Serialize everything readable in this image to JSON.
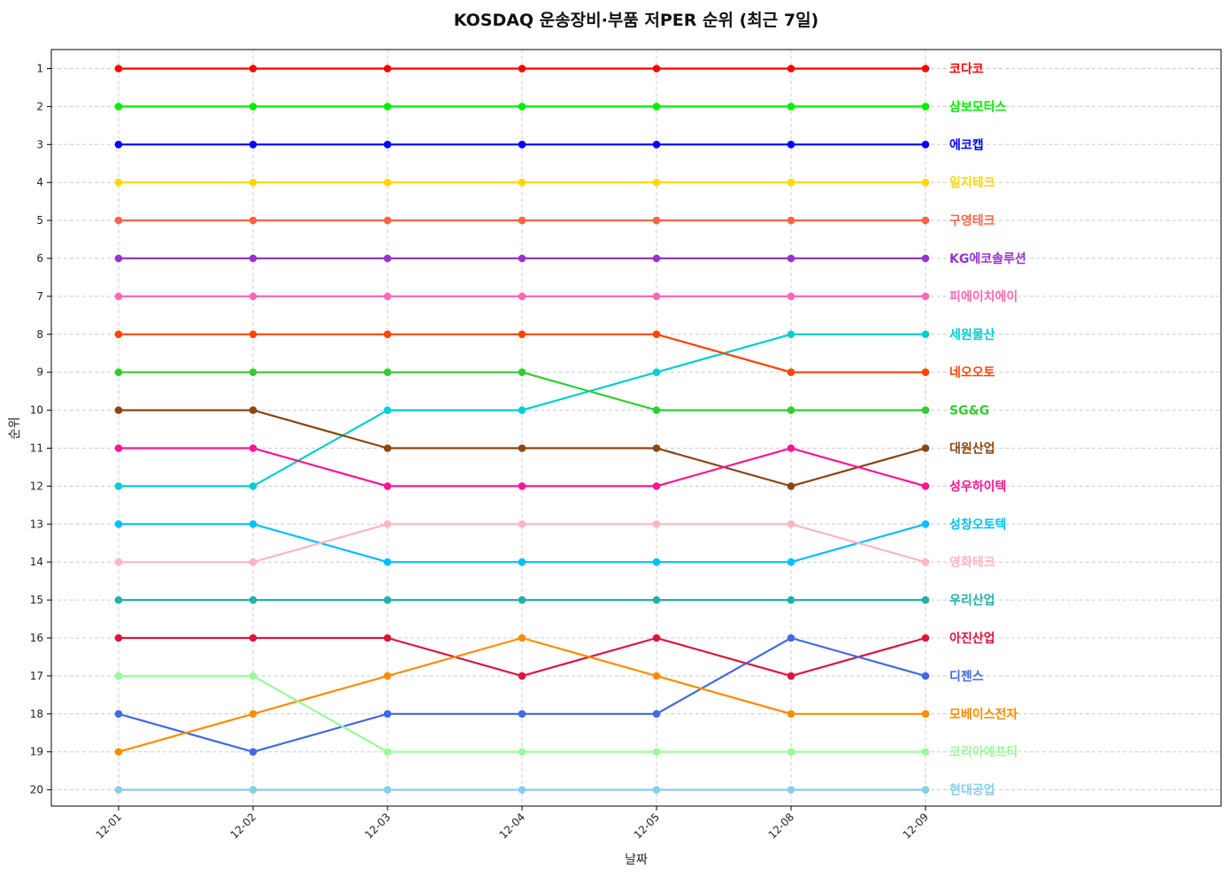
{
  "chart_data": {
    "type": "line",
    "title": "KOSDAQ 운송장비·부품 저PER 순위 (최근 7일)",
    "xlabel": "날짜",
    "ylabel": "순위",
    "x": [
      "12-01",
      "12-02",
      "12-03",
      "12-04",
      "12-05",
      "12-08",
      "12-09"
    ],
    "yticks": [
      "1",
      "2",
      "3",
      "4",
      "5",
      "6",
      "7",
      "8",
      "9",
      "10",
      "11",
      "12",
      "13",
      "14",
      "15",
      "16",
      "17",
      "18",
      "19",
      "20"
    ],
    "ylim": [
      20.5,
      0.5
    ],
    "y_inverted": true,
    "grid": true,
    "series": [
      {
        "name": "코다코",
        "color": "#ff0000",
        "values": [
          1,
          1,
          1,
          1,
          1,
          1,
          1
        ]
      },
      {
        "name": "삼보모터스",
        "color": "#00ee00",
        "values": [
          2,
          2,
          2,
          2,
          2,
          2,
          2
        ]
      },
      {
        "name": "에코캡",
        "color": "#0000ff",
        "values": [
          3,
          3,
          3,
          3,
          3,
          3,
          3
        ]
      },
      {
        "name": "일지테크",
        "color": "#ffd700",
        "values": [
          4,
          4,
          4,
          4,
          4,
          4,
          4
        ]
      },
      {
        "name": "구영테크",
        "color": "#ff6347",
        "values": [
          5,
          5,
          5,
          5,
          5,
          5,
          5
        ]
      },
      {
        "name": "KG에코솔루션",
        "color": "#9932cc",
        "values": [
          6,
          6,
          6,
          6,
          6,
          6,
          6
        ]
      },
      {
        "name": "피에이치에이",
        "color": "#ff69b4",
        "values": [
          7,
          7,
          7,
          7,
          7,
          7,
          7
        ]
      },
      {
        "name": "세원물산",
        "color": "#00ced1",
        "values": [
          12,
          12,
          10,
          10,
          9,
          8,
          8
        ]
      },
      {
        "name": "네오오토",
        "color": "#ff4500",
        "values": [
          8,
          8,
          8,
          8,
          8,
          9,
          9
        ]
      },
      {
        "name": "SG&G",
        "color": "#32cd32",
        "values": [
          9,
          9,
          9,
          9,
          10,
          10,
          10
        ]
      },
      {
        "name": "대원산업",
        "color": "#8b4513",
        "values": [
          10,
          10,
          11,
          11,
          11,
          12,
          11
        ]
      },
      {
        "name": "성우하이텍",
        "color": "#ff1493",
        "values": [
          11,
          11,
          12,
          12,
          12,
          11,
          12
        ]
      },
      {
        "name": "성창오토텍",
        "color": "#00bfff",
        "values": [
          13,
          13,
          14,
          14,
          14,
          14,
          13
        ]
      },
      {
        "name": "영화테크",
        "color": "#ffb6c1",
        "values": [
          14,
          14,
          13,
          13,
          13,
          13,
          14
        ]
      },
      {
        "name": "우리산업",
        "color": "#20b2aa",
        "values": [
          15,
          15,
          15,
          15,
          15,
          15,
          15
        ]
      },
      {
        "name": "아진산업",
        "color": "#dc143c",
        "values": [
          16,
          16,
          16,
          17,
          16,
          17,
          16
        ]
      },
      {
        "name": "디젠스",
        "color": "#4169e1",
        "values": [
          18,
          19,
          18,
          18,
          18,
          16,
          17
        ]
      },
      {
        "name": "모베이스전자",
        "color": "#ff8c00",
        "values": [
          19,
          18,
          17,
          16,
          17,
          18,
          18
        ]
      },
      {
        "name": "코리아에프티",
        "color": "#98fb98",
        "values": [
          17,
          17,
          19,
          19,
          19,
          19,
          19
        ]
      },
      {
        "name": "현대공업",
        "color": "#87ceeb",
        "values": [
          20,
          20,
          20,
          20,
          20,
          20,
          20
        ]
      }
    ]
  }
}
